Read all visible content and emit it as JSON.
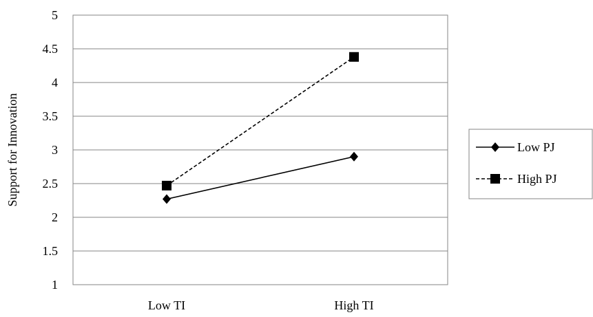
{
  "chart_data": {
    "type": "line",
    "title": "",
    "xlabel": "",
    "ylabel": "Support for Innovation",
    "categories": [
      "Low TI",
      "High TI"
    ],
    "ylim": [
      1,
      5
    ],
    "yticks": [
      1,
      1.5,
      2,
      2.5,
      3,
      3.5,
      4,
      4.5,
      5
    ],
    "ytick_labels": [
      "1",
      "1.5",
      "2",
      "2.5",
      "3",
      "3.5",
      "4",
      "4.5",
      "5"
    ],
    "grid": true,
    "legend_position": "right",
    "series": [
      {
        "name": "Low PJ",
        "values": [
          2.27,
          2.9
        ],
        "marker": "diamond",
        "line_style": "solid",
        "color": "#000000"
      },
      {
        "name": "High PJ",
        "values": [
          2.47,
          4.38
        ],
        "marker": "square",
        "line_style": "dashed",
        "color": "#000000"
      }
    ]
  }
}
